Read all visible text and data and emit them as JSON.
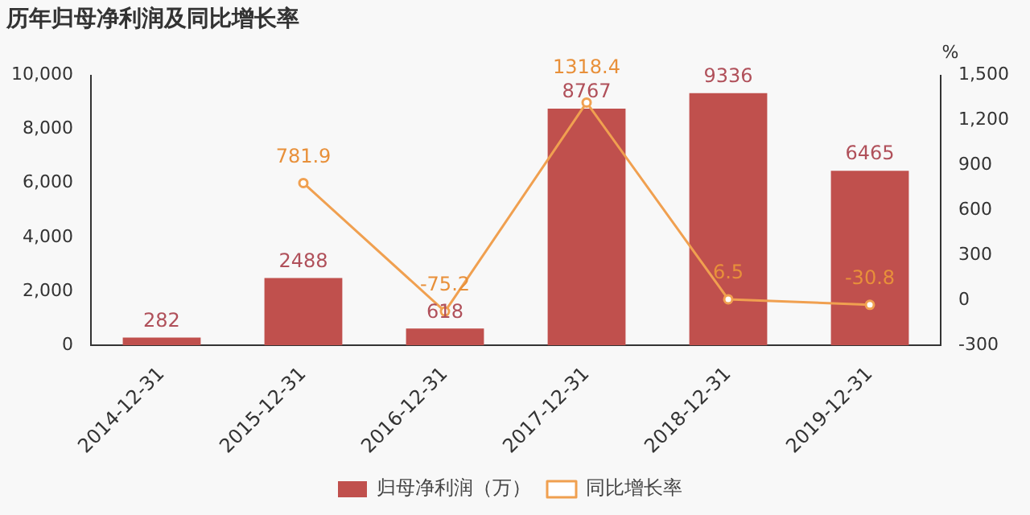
{
  "chart_data": {
    "type": "bar",
    "title": "历年归母净利润及同比增长率",
    "y2label": "%",
    "categories": [
      "2014-12-31",
      "2015-12-31",
      "2016-12-31",
      "2017-12-31",
      "2018-12-31",
      "2019-12-31"
    ],
    "series": [
      {
        "name": "归母净利润（万）",
        "color": "#c0504d",
        "values": [
          282,
          2488,
          618,
          8767,
          9336,
          6465
        ]
      },
      {
        "name": "同比增长率",
        "type": "line",
        "axis": "y2",
        "color": "#f0a050",
        "marker": "circle",
        "values": [
          null,
          781.9,
          -75.2,
          1318.4,
          6.5,
          -30.8
        ]
      }
    ],
    "ylim": [
      0,
      10000
    ],
    "yticks": [
      {
        "value": 0,
        "label": "0"
      },
      {
        "value": 2000,
        "label": "2,000"
      },
      {
        "value": 4000,
        "label": "4,000"
      },
      {
        "value": 6000,
        "label": "6,000"
      },
      {
        "value": 8000,
        "label": "8,000"
      },
      {
        "value": 10000,
        "label": "10,000"
      }
    ],
    "y2lim": [
      -300,
      1500
    ],
    "y2ticks": [
      -300,
      0,
      300,
      600,
      900,
      {
        "value": 1200,
        "label": "1,200"
      },
      {
        "value": 1500,
        "label": "1,500"
      }
    ],
    "data_labels": true,
    "grid": false,
    "legend": "bottom"
  }
}
